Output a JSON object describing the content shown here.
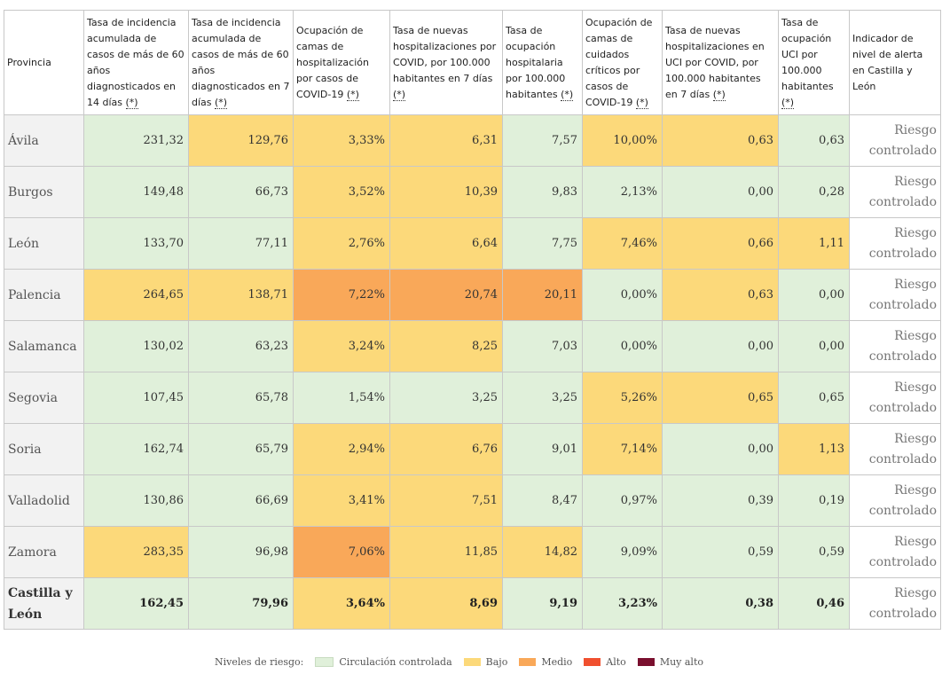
{
  "table": {
    "headers": {
      "provincia": "Provincia",
      "inc14": "Tasa de incidencia acumulada de casos de más de 60 años diagnosticados en 14 días",
      "inc7": "Tasa de incidencia acumulada de casos de más de 60 años diagnosticados en 7 días",
      "ocup_hosp": "Ocupación de camas de hospitalización por casos de COVID-19",
      "nuevas_hosp": "Tasa de nuevas hospitalizaciones por COVID, por 100.000 habitantes en 7 días",
      "tasa_ocup_hosp": "Tasa de ocupación hospitalaria por 100.000 habitantes",
      "ocup_uci": "Ocupación de camas de cuidados críticos por casos de COVID-19",
      "nuevas_uci": "Tasa de nuevas hospitalizaciones en UCI por COVID, por 100.000 habitantes en 7 días",
      "tasa_ocup_uci": "Tasa de ocupación UCI por 100.000 habitantes",
      "indicador": "Indicador de nivel de alerta en Castilla y León",
      "asterisk": "(*)"
    },
    "rows": [
      {
        "provincia": "Ávila",
        "values": [
          "231,32",
          "129,76",
          "3,33%",
          "6,31",
          "7,57",
          "10,00%",
          "0,63",
          "0,63"
        ],
        "levels": [
          "c",
          "b",
          "b",
          "b",
          "c",
          "b",
          "b",
          "c"
        ],
        "indicador": "Riesgo controlado"
      },
      {
        "provincia": "Burgos",
        "values": [
          "149,48",
          "66,73",
          "3,52%",
          "10,39",
          "9,83",
          "2,13%",
          "0,00",
          "0,28"
        ],
        "levels": [
          "c",
          "c",
          "b",
          "b",
          "c",
          "c",
          "c",
          "c"
        ],
        "indicador": "Riesgo controlado"
      },
      {
        "provincia": "León",
        "values": [
          "133,70",
          "77,11",
          "2,76%",
          "6,64",
          "7,75",
          "7,46%",
          "0,66",
          "1,11"
        ],
        "levels": [
          "c",
          "c",
          "b",
          "b",
          "c",
          "b",
          "b",
          "b"
        ],
        "indicador": "Riesgo controlado"
      },
      {
        "provincia": "Palencia",
        "values": [
          "264,65",
          "138,71",
          "7,22%",
          "20,74",
          "20,11",
          "0,00%",
          "0,63",
          "0,00"
        ],
        "levels": [
          "b",
          "b",
          "m",
          "m",
          "m",
          "c",
          "b",
          "c"
        ],
        "indicador": "Riesgo controlado"
      },
      {
        "provincia": "Salamanca",
        "values": [
          "130,02",
          "63,23",
          "3,24%",
          "8,25",
          "7,03",
          "0,00%",
          "0,00",
          "0,00"
        ],
        "levels": [
          "c",
          "c",
          "b",
          "b",
          "c",
          "c",
          "c",
          "c"
        ],
        "indicador": "Riesgo controlado"
      },
      {
        "provincia": "Segovia",
        "values": [
          "107,45",
          "65,78",
          "1,54%",
          "3,25",
          "3,25",
          "5,26%",
          "0,65",
          "0,65"
        ],
        "levels": [
          "c",
          "c",
          "c",
          "c",
          "c",
          "b",
          "b",
          "c"
        ],
        "indicador": "Riesgo controlado"
      },
      {
        "provincia": "Soria",
        "values": [
          "162,74",
          "65,79",
          "2,94%",
          "6,76",
          "9,01",
          "7,14%",
          "0,00",
          "1,13"
        ],
        "levels": [
          "c",
          "c",
          "b",
          "b",
          "c",
          "b",
          "c",
          "b"
        ],
        "indicador": "Riesgo controlado"
      },
      {
        "provincia": "Valladolid",
        "values": [
          "130,86",
          "66,69",
          "3,41%",
          "7,51",
          "8,47",
          "0,97%",
          "0,39",
          "0,19"
        ],
        "levels": [
          "c",
          "c",
          "b",
          "b",
          "c",
          "c",
          "c",
          "c"
        ],
        "indicador": "Riesgo controlado"
      },
      {
        "provincia": "Zamora",
        "values": [
          "283,35",
          "96,98",
          "7,06%",
          "11,85",
          "14,82",
          "9,09%",
          "0,59",
          "0,59"
        ],
        "levels": [
          "b",
          "c",
          "m",
          "b",
          "b",
          "c",
          "c",
          "c"
        ],
        "indicador": "Riesgo controlado"
      }
    ],
    "total": {
      "provincia": "Castilla y León",
      "values": [
        "162,45",
        "79,96",
        "3,64%",
        "8,69",
        "9,19",
        "3,23%",
        "0,38",
        "0,46"
      ],
      "levels": [
        "c",
        "c",
        "b",
        "b",
        "c",
        "c",
        "c",
        "c"
      ],
      "indicador": "Riesgo controlado"
    }
  },
  "legend": {
    "title": "Niveles de riesgo:",
    "items": [
      {
        "label": "Circulación controlada",
        "color": "#e0f0da"
      },
      {
        "label": "Bajo",
        "color": "#fcd97a"
      },
      {
        "label": "Medio",
        "color": "#f9a859"
      },
      {
        "label": "Alto",
        "color": "#f0502f"
      },
      {
        "label": "Muy alto",
        "color": "#7a0f2e"
      }
    ]
  }
}
